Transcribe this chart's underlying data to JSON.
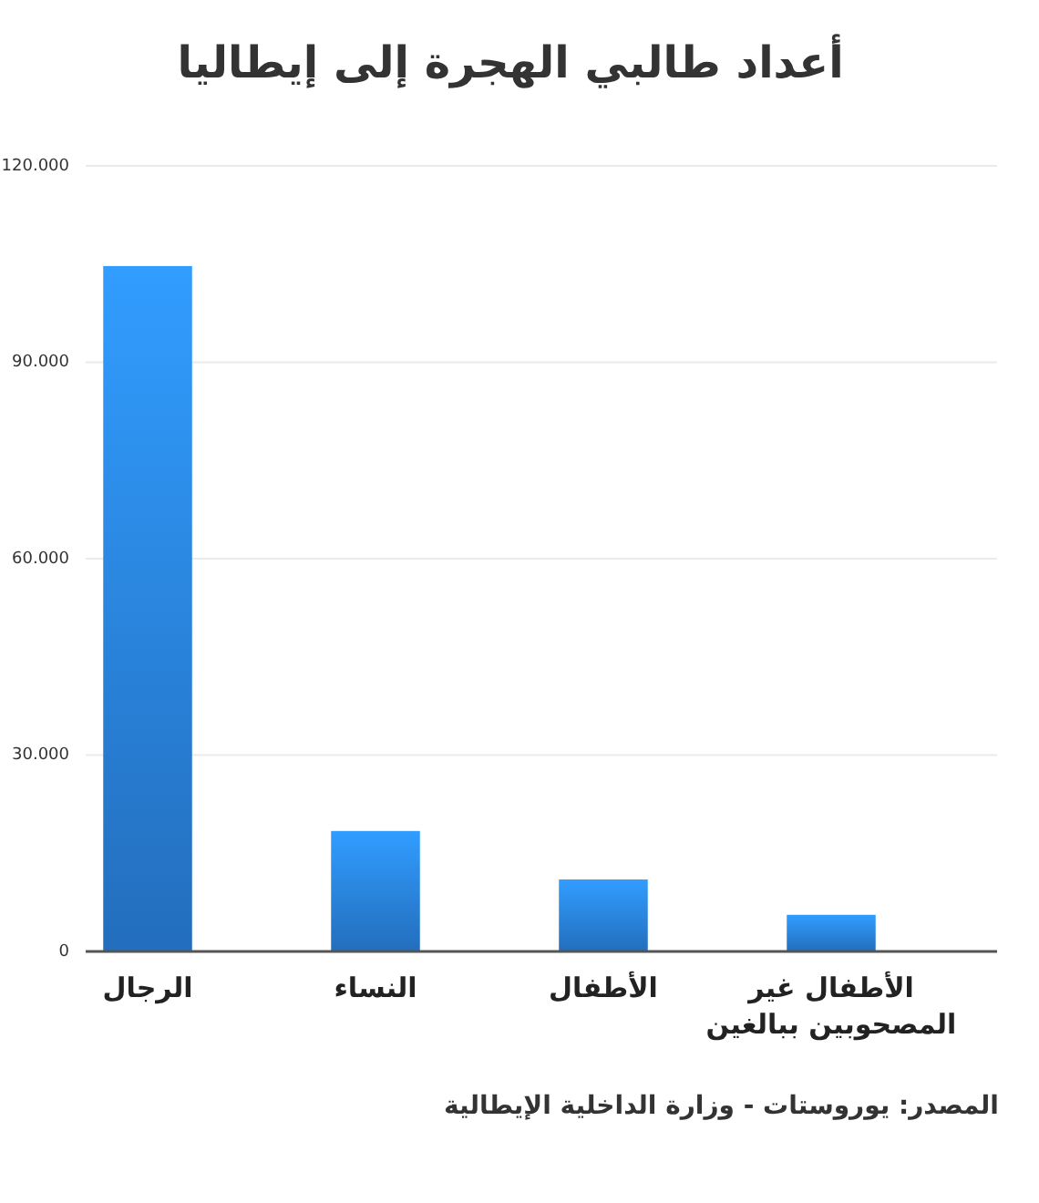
{
  "chart_data": {
    "type": "bar",
    "title": "أعداد طالبي الهجرة إلى إيطاليا",
    "categories": [
      "الرجال",
      "النساء",
      "الأطفال",
      "الأطفال غير المصحوبين ببالغين"
    ],
    "values": [
      104700,
      18400,
      11000,
      5600
    ],
    "color": "#2a86e6",
    "ylim": [
      0,
      120000
    ],
    "yticks": [
      {
        "value": 0,
        "label": "0"
      },
      {
        "value": 30000,
        "label": "30.000"
      },
      {
        "value": 60000,
        "label": "60.000"
      },
      {
        "value": 90000,
        "label": "90.000"
      },
      {
        "value": 120000,
        "label": "120.000"
      }
    ],
    "grid": "y",
    "annotations": [
      "المصدر: يوروستات - وزارة الداخلية الإيطالية"
    ]
  }
}
